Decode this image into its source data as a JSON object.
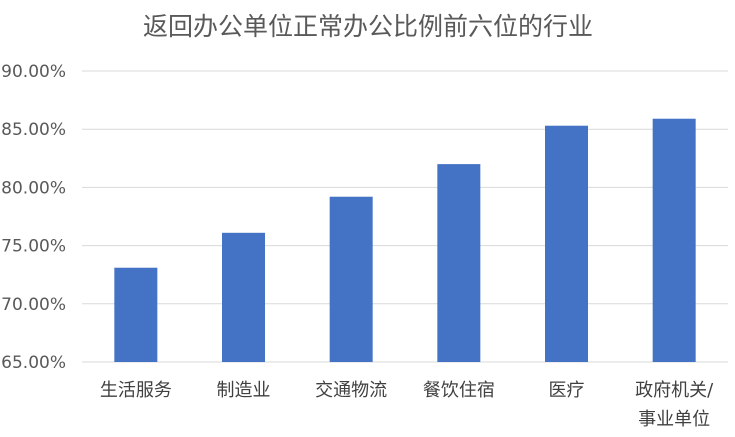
{
  "chart_data": {
    "type": "bar",
    "title": "返回办公单位正常办公比例前六位的行业",
    "xlabel": "",
    "ylabel": "",
    "categories": [
      [
        "生活服务"
      ],
      [
        "制造业"
      ],
      [
        "交通物流"
      ],
      [
        "餐饮住宿"
      ],
      [
        "医疗"
      ],
      [
        "政府机关/",
        "事业单位"
      ]
    ],
    "values": [
      0.731,
      0.761,
      0.792,
      0.82,
      0.853,
      0.859
    ],
    "ylim": [
      0.65,
      0.9
    ],
    "yticks": [
      "65.00%",
      "70.00%",
      "75.00%",
      "80.00%",
      "85.00%",
      "90.00%"
    ],
    "grid": true,
    "bar_color": "#4472c4"
  }
}
